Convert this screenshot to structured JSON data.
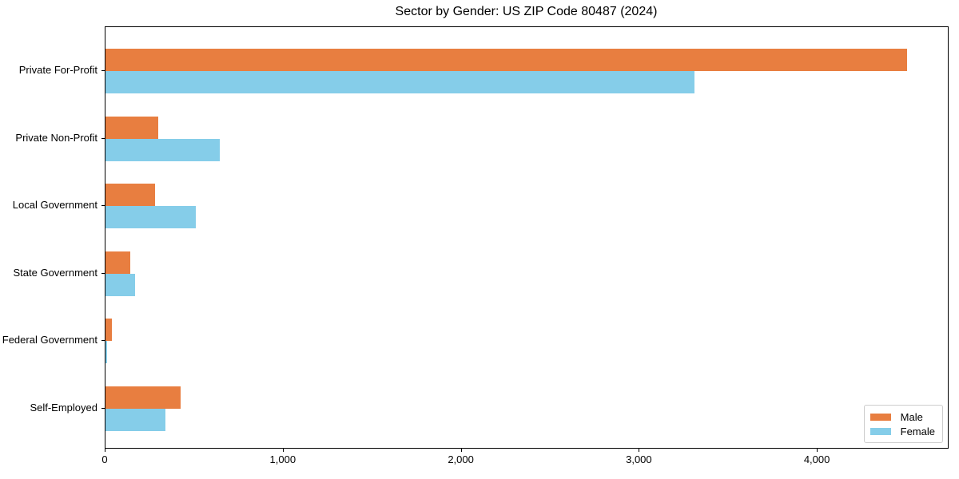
{
  "chart_data": {
    "type": "bar",
    "orientation": "horizontal",
    "title": "Sector by Gender: US ZIP Code 80487 (2024)",
    "xlabel": "",
    "ylabel": "",
    "categories": [
      "Private For-Profit",
      "Private Non-Profit",
      "Local Government",
      "State Government",
      "Federal Government",
      "Self-Employed"
    ],
    "series": [
      {
        "name": "Male",
        "color": "#e87e40",
        "values": [
          4500,
          295,
          280,
          140,
          35,
          420
        ]
      },
      {
        "name": "Female",
        "color": "#85cde9",
        "values": [
          3310,
          640,
          505,
          165,
          10,
          335
        ]
      }
    ],
    "xlim": [
      0,
      4731
    ],
    "x_ticks": [
      0,
      1000,
      2000,
      3000,
      4000
    ],
    "x_tick_labels": [
      "0",
      "1,000",
      "2,000",
      "3,000",
      "4,000"
    ],
    "grid": false,
    "legend": {
      "position": "lower right",
      "entries": [
        "Male",
        "Female"
      ]
    },
    "colors": {
      "male": "#e87e40",
      "female": "#85cde9",
      "spine": "#000000",
      "legend_border": "#cccccc",
      "background": "#ffffff"
    }
  }
}
